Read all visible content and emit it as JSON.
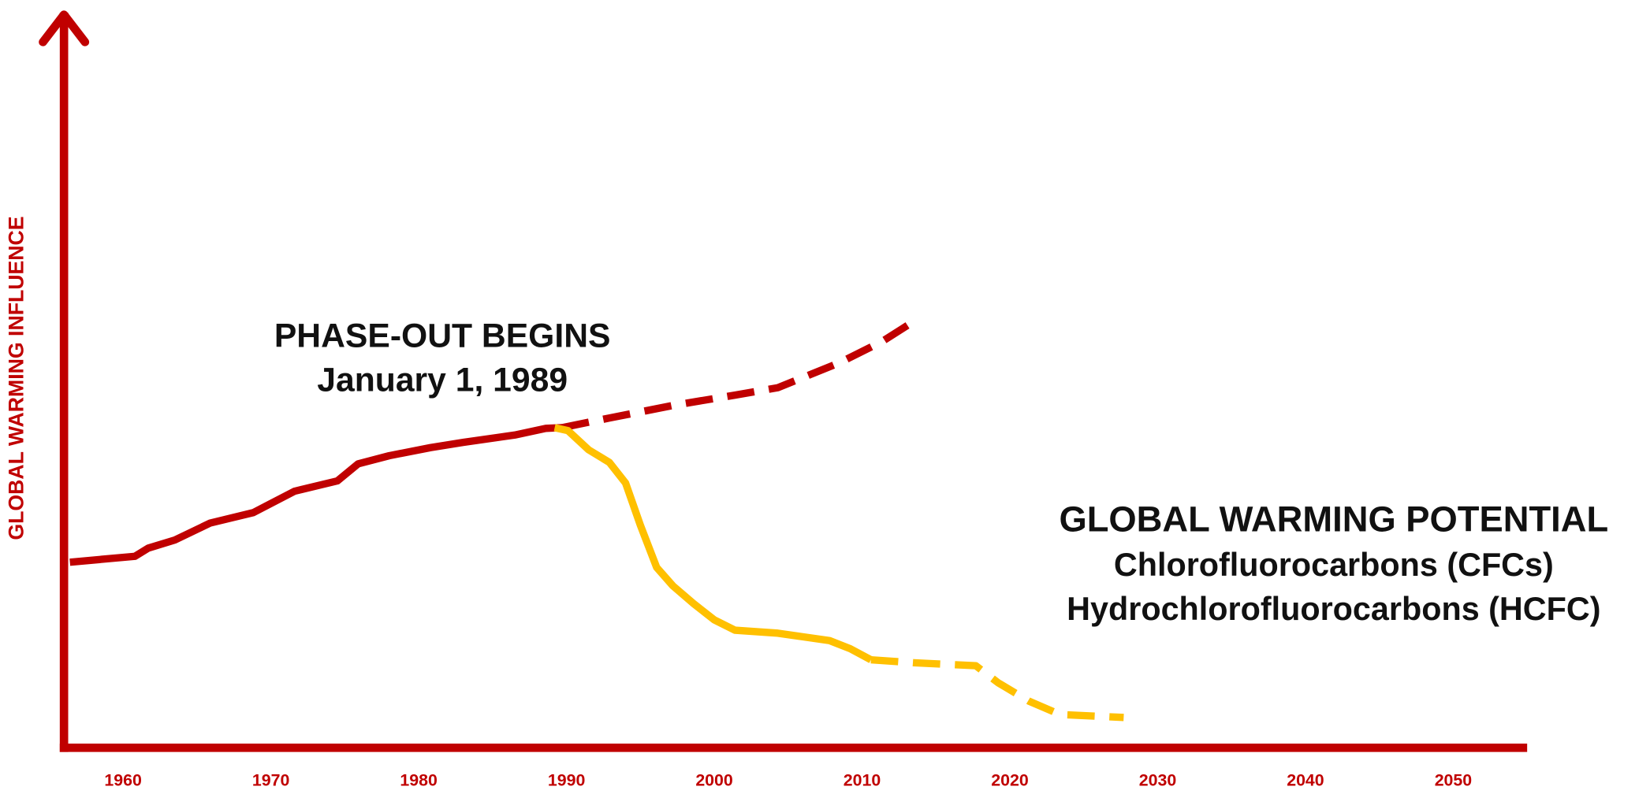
{
  "chart_data": {
    "type": "line",
    "title": "GLOBAL WARMING POTENTIAL",
    "subtitle": [
      "Chlorofluorocarbons (CFCs)",
      "Hydrochlorofluorocarbons (HCFC)"
    ],
    "annotation": [
      "PHASE-OUT BEGINS",
      "January 1, 1989"
    ],
    "y_label": "GLOBAL WARMING INFLUENCE",
    "xlim": [
      1956,
      2055
    ],
    "ylim": [
      0,
      100
    ],
    "xticks": [
      1960,
      1970,
      1980,
      1990,
      2000,
      2010,
      2020,
      2030,
      2040,
      2050
    ],
    "axis_color": "#c00000",
    "series": [
      {
        "color": "#c00000",
        "dashed": false,
        "x": [
          1956.4,
          1960.8,
          1961.7,
          1963.5,
          1965.9,
          1968.8,
          1971.6,
          1974.5,
          1975.9,
          1978.0,
          1980.8,
          1983.0,
          1986.5,
          1988.6,
          1989.7
        ],
        "values": [
          25.1,
          25.9,
          27.0,
          28.1,
          30.4,
          31.8,
          34.7,
          36.1,
          38.4,
          39.5,
          40.6,
          41.3,
          42.3,
          43.2,
          43.3
        ]
      },
      {
        "color": "#c00000",
        "dashed": true,
        "x": [
          1989.7,
          1992.9,
          1997.2,
          2001.4,
          2004.3,
          2008.5,
          2011.4,
          2013.6
        ],
        "values": [
          43.3,
          44.6,
          46.3,
          47.7,
          48.7,
          52.1,
          55.0,
          57.8
        ]
      },
      {
        "color": "#ffc000",
        "dashed": false,
        "x": [
          1989.2,
          1990.1,
          1991.5,
          1992.9,
          1994.0,
          1995.0,
          1996.1,
          1997.2,
          1998.6,
          2000.0,
          2001.4,
          2004.3,
          2005.7,
          2007.8,
          2009.2,
          2010.6
        ],
        "values": [
          43.3,
          42.9,
          40.3,
          38.6,
          35.8,
          30.1,
          24.4,
          21.9,
          19.5,
          17.3,
          15.9,
          15.5,
          15.1,
          14.5,
          13.4,
          11.9
        ]
      },
      {
        "color": "#ffc000",
        "dashed": true,
        "x": [
          2010.6,
          2013.5,
          2017.7,
          2019.2,
          2021.3,
          2023.4,
          2027.7
        ],
        "values": [
          11.9,
          11.5,
          11.1,
          8.8,
          6.3,
          4.5,
          4.1
        ]
      }
    ]
  }
}
